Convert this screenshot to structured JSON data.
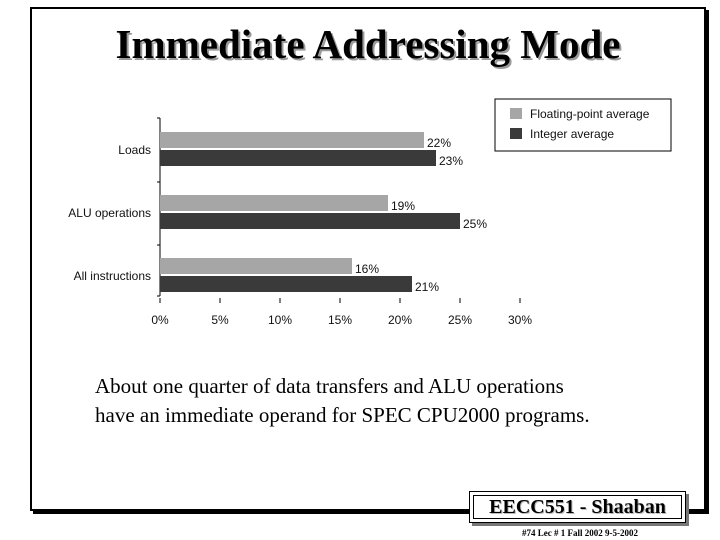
{
  "slide": {
    "title": "Immediate Addressing Mode",
    "caption_line1": "About one quarter of data transfers and ALU operations",
    "caption_line2": "have an immediate operand for SPEC CPU2000 programs.",
    "footer_title": "EECC551 - Shaaban",
    "footer_note": "#74   Lec # 1 Fall 2002   9-5-2002"
  },
  "chart_data": {
    "type": "bar",
    "orientation": "horizontal",
    "categories": [
      "Loads",
      "ALU operations",
      "All instructions"
    ],
    "series": [
      {
        "name": "Floating-point average",
        "values": [
          22,
          19,
          16
        ],
        "color": "#a6a6a6"
      },
      {
        "name": "Integer average",
        "values": [
          23,
          25,
          21
        ],
        "color": "#3a3a3a"
      }
    ],
    "data_labels": [
      [
        "22%",
        "23%"
      ],
      [
        "19%",
        "25%"
      ],
      [
        "16%",
        "21%"
      ]
    ],
    "x_ticks": [
      "0%",
      "5%",
      "10%",
      "15%",
      "20%",
      "25%",
      "30%"
    ],
    "xlim": [
      0,
      30
    ],
    "unit": "%",
    "legend_position": "top-right",
    "grid": false
  }
}
